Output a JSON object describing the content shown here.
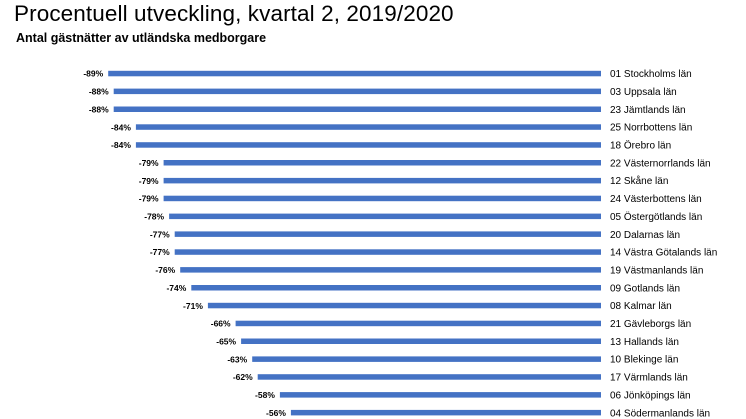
{
  "chart_data": {
    "type": "bar",
    "orientation": "horizontal",
    "title": "Procentuell utveckling, kvartal 2, 2019/2020",
    "subtitle": "Antal gästnätter av utländska medborgare",
    "categories": [
      "01 Stockholms län",
      "03 Uppsala län",
      "23 Jämtlands län",
      "25 Norrbottens län",
      "18 Örebro län",
      "22 Västernorrlands län",
      "12 Skåne län",
      "24 Västerbottens län",
      "05 Östergötlands län",
      "20 Dalarnas län",
      "14 Västra Götalands län",
      "19 Västmanlands län",
      "09 Gotlands län",
      "08 Kalmar län",
      "21 Gävleborgs län",
      "13 Hallands län",
      "10 Blekinge län",
      "17 Värmlands län",
      "06 Jönköpings län",
      "04 Södermanlands län"
    ],
    "values": [
      -89,
      -88,
      -88,
      -84,
      -84,
      -79,
      -79,
      -79,
      -78,
      -77,
      -77,
      -76,
      -74,
      -71,
      -66,
      -65,
      -63,
      -62,
      -58,
      -56
    ],
    "value_labels": [
      "-89%",
      "-88%",
      "-88%",
      "-84%",
      "-84%",
      "-79%",
      "-79%",
      "-79%",
      "-78%",
      "-77%",
      "-77%",
      "-76%",
      "-74%",
      "-71%",
      "-66%",
      "-65%",
      "-63%",
      "-62%",
      "-58%",
      "-56%"
    ],
    "bar_color": "#4472C4",
    "grid": false,
    "legend": "none"
  }
}
